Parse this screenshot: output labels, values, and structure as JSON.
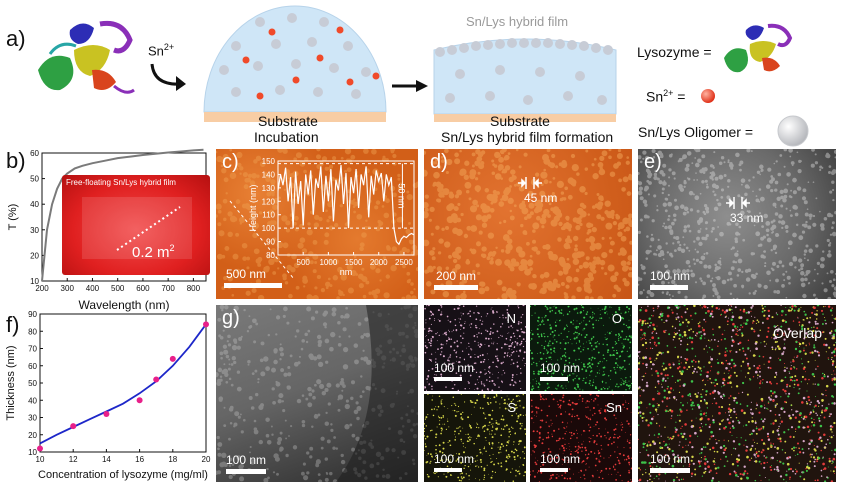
{
  "panel_a": {
    "label": "a)",
    "sn_label": "Sn",
    "sn_sup": "2+",
    "film_label": "Sn/Lys hybrid film",
    "substrate_1": "Substrate",
    "substrate_2": "Substrate",
    "step_1": "Incubation",
    "step_2": "Sn/Lys hybrid film formation",
    "legend_lysozyme": "Lysozyme =",
    "legend_sn": "Sn",
    "legend_sn_sup": "2+",
    "legend_sn_eq": "=",
    "legend_oligomer": "Sn/Lys Oligomer ="
  },
  "panel_b": {
    "label": "b)",
    "photo_caption": "Free-floating Sn/Lys hybrid film",
    "area": "0.2 m",
    "area_sup": "2",
    "chart_data": {
      "type": "line",
      "title": "",
      "xlabel": "Wavelength (nm)",
      "ylabel": "T (%)",
      "xlim": [
        200,
        850
      ],
      "ylim": [
        10,
        60
      ],
      "xticks": [
        "200",
        "300",
        "400",
        "500",
        "600",
        "700",
        "800"
      ],
      "yticks": [
        "10",
        "20",
        "30",
        "40",
        "50",
        "60"
      ],
      "x": [
        200,
        210,
        220,
        240,
        260,
        280,
        300,
        330,
        360,
        400,
        450,
        500,
        550,
        600,
        650,
        700,
        750,
        800,
        840
      ],
      "y": [
        10,
        20,
        30,
        40,
        46,
        50,
        52,
        54,
        55,
        56,
        57,
        58,
        58.6,
        59.2,
        59.7,
        60.2,
        60.6,
        61,
        61.3
      ]
    }
  },
  "panel_c": {
    "label": "c)",
    "scale": "500 nm",
    "inset": {
      "chart_data": {
        "type": "line",
        "xlabel": "nm",
        "ylabel": "Height (nm)",
        "xlim": [
          0,
          2700
        ],
        "ylim": [
          80,
          150
        ],
        "xticks": [
          "500",
          "1000",
          "1500",
          "2000",
          "2500"
        ],
        "yticks": [
          "80",
          "90",
          "100",
          "110",
          "120",
          "130",
          "140",
          "150"
        ],
        "annotation": "50 nm",
        "x": [
          0,
          50,
          100,
          150,
          200,
          250,
          300,
          350,
          400,
          450,
          500,
          550,
          600,
          650,
          700,
          750,
          800,
          850,
          900,
          950,
          1000,
          1050,
          1100,
          1150,
          1200,
          1250,
          1300,
          1350,
          1400,
          1450,
          1500,
          1550,
          1600,
          1650,
          1700,
          1750,
          1800,
          1850,
          1900,
          1950,
          2000,
          2050,
          2100,
          2150,
          2200,
          2250,
          2300,
          2350,
          2400,
          2450,
          2500,
          2550,
          2600,
          2650,
          2700
        ],
        "y": [
          128,
          140,
          132,
          145,
          120,
          138,
          100,
          142,
          118,
          135,
          102,
          140,
          125,
          143,
          110,
          137,
          130,
          146,
          112,
          139,
          120,
          144,
          105,
          136,
          128,
          147,
          118,
          141,
          100,
          138,
          126,
          144,
          115,
          140,
          132,
          146,
          108,
          139,
          125,
          143,
          135,
          141,
          120,
          140,
          132,
          138,
          100,
          90,
          88,
          92,
          94,
          93,
          95,
          96,
          95
        ]
      }
    }
  },
  "panel_d": {
    "label": "d)",
    "feature": "45 nm",
    "scale": "200 nm"
  },
  "panel_e": {
    "label": "e)",
    "feature": "33 nm",
    "scale": "100 nm"
  },
  "panel_f": {
    "label": "f)",
    "chart_data": {
      "type": "scatter",
      "title": "",
      "xlabel": "Concentration of lysozyme (mg/ml)",
      "ylabel": "Thickness (nm)",
      "xlim": [
        10,
        20
      ],
      "ylim": [
        10,
        90
      ],
      "xticks": [
        "10",
        "12",
        "14",
        "16",
        "18",
        "20"
      ],
      "yticks": [
        "10",
        "20",
        "30",
        "40",
        "50",
        "60",
        "70",
        "80",
        "90"
      ],
      "x": [
        10,
        12,
        14,
        16,
        17,
        18,
        20
      ],
      "y": [
        12,
        25,
        32,
        40,
        52,
        64,
        84
      ],
      "fit": {
        "x": [
          10,
          11,
          12,
          13,
          14,
          15,
          16,
          17,
          18,
          19,
          20
        ],
        "y": [
          15,
          20,
          24.5,
          29,
          33.5,
          38,
          44,
          51,
          60,
          71,
          84
        ]
      }
    }
  },
  "panel_g": {
    "label": "g)",
    "scale": "100 nm"
  },
  "eds": {
    "maps": [
      {
        "element": "N",
        "scale": "100 nm"
      },
      {
        "element": "O",
        "scale": "100 nm"
      },
      {
        "element": "S",
        "scale": "100 nm"
      },
      {
        "element": "Sn",
        "scale": "100 nm"
      }
    ],
    "overlap": {
      "label": "Overlap",
      "scale": "100 nm"
    }
  },
  "colors": {
    "dome": "#cfe6f7",
    "substrate": "#f8cda4",
    "sn_ion": "#f04a2a",
    "oligomer": "#c7ccd6",
    "afm_orange": "#d8621a",
    "fit_line": "#1d27c9",
    "points": "#e8208a",
    "n_map": "#d7a8c8",
    "o_map": "#3ec24a",
    "s_map": "#d6d64a",
    "sn_map": "#e23a3a"
  }
}
